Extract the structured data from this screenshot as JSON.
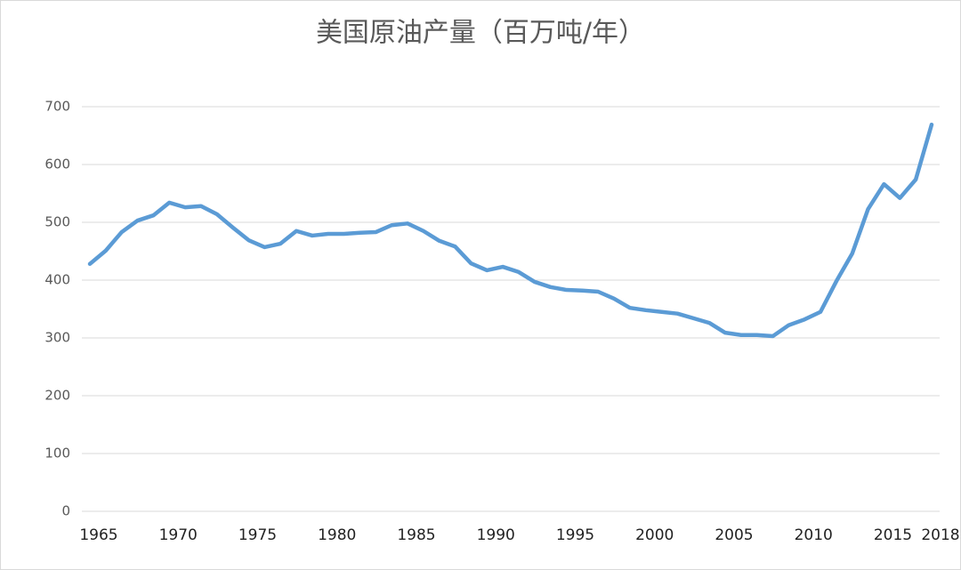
{
  "chart_data": {
    "type": "line",
    "title": "美国原油产量（百万吨/年）",
    "x": [
      1965,
      1966,
      1967,
      1968,
      1969,
      1970,
      1971,
      1972,
      1973,
      1974,
      1975,
      1976,
      1977,
      1978,
      1979,
      1980,
      1981,
      1982,
      1983,
      1984,
      1985,
      1986,
      1987,
      1988,
      1989,
      1990,
      1991,
      1992,
      1993,
      1994,
      1995,
      1996,
      1997,
      1998,
      1999,
      2000,
      2001,
      2002,
      2003,
      2004,
      2005,
      2006,
      2007,
      2008,
      2009,
      2010,
      2011,
      2012,
      2013,
      2014,
      2015,
      2016,
      2017,
      2018
    ],
    "series": [
      {
        "color": "#5b9bd5",
        "values": [
          428,
          451,
          483,
          503,
          512,
          534,
          526,
          528,
          514,
          491,
          469,
          457,
          463,
          485,
          477,
          480,
          480,
          482,
          483,
          495,
          498,
          485,
          468,
          458,
          429,
          417,
          423,
          414,
          397,
          388,
          383,
          382,
          380,
          368,
          352,
          348,
          345,
          342,
          334,
          326,
          309,
          305,
          305,
          303,
          322,
          332,
          345,
          398,
          446,
          523,
          566,
          542,
          574,
          669
        ]
      }
    ],
    "xlim": [
      1965,
      2018
    ],
    "xticks": [
      1965,
      1970,
      1975,
      1980,
      1985,
      1990,
      1995,
      2000,
      2005,
      2010,
      2015,
      2018
    ],
    "ylim": [
      0,
      700
    ],
    "yticks": [
      0,
      100,
      200,
      300,
      400,
      500,
      600,
      700
    ],
    "grid": true
  }
}
